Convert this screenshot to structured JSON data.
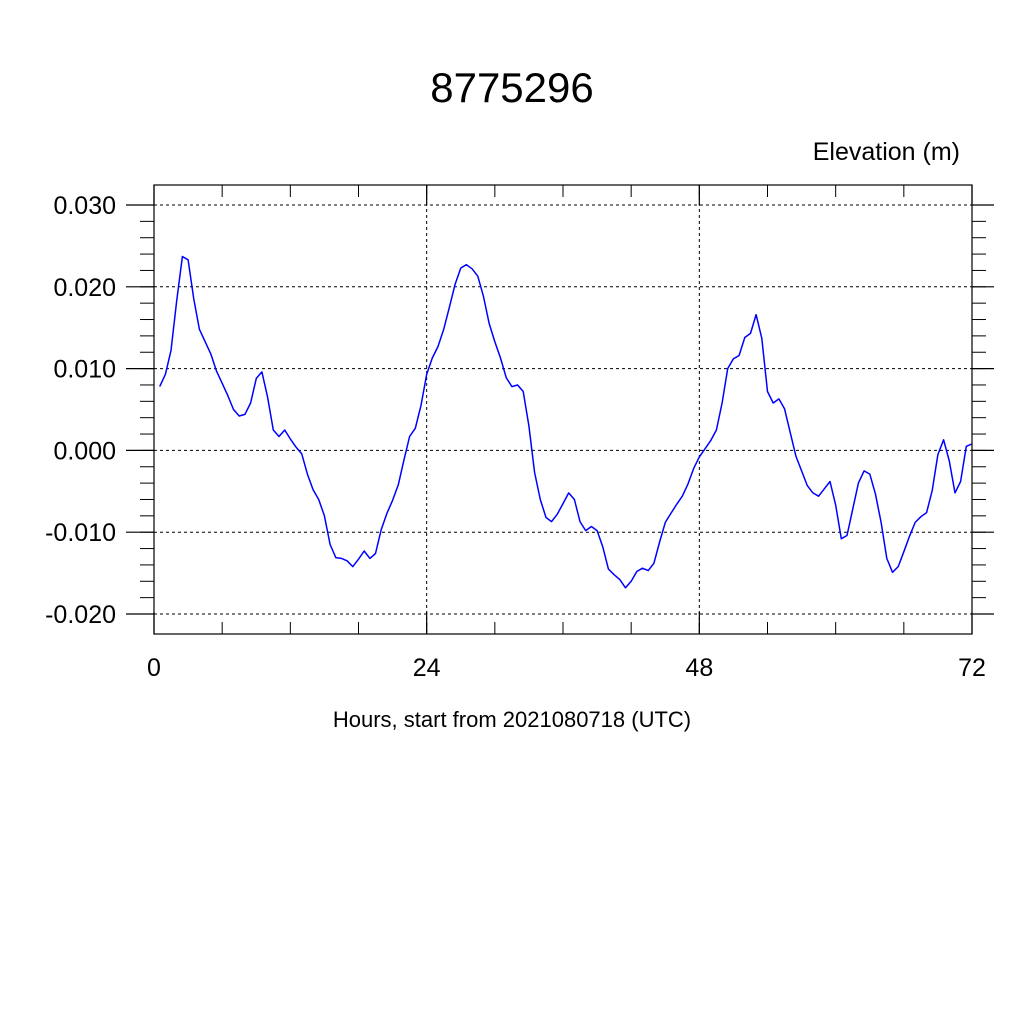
{
  "chart_data": {
    "type": "line",
    "title": "8775296",
    "ylabel": "Elevation (m)",
    "xlabel": "Hours, start from 2021080718 (UTC)",
    "xlim": [
      0,
      72
    ],
    "ylim": [
      -0.02,
      0.03
    ],
    "xticks": [
      0,
      24,
      48,
      72
    ],
    "xtick_labels": [
      "0",
      "24",
      "48",
      "72"
    ],
    "yticks": [
      -0.02,
      -0.01,
      0.0,
      0.01,
      0.02,
      0.03
    ],
    "ytick_labels": [
      "-0.020",
      "-0.010",
      "0.000",
      "0.010",
      "0.020",
      "0.030"
    ],
    "grid": true,
    "series": [
      {
        "color": "#0000ff",
        "x": [
          0.5,
          1.0,
          1.5,
          2.0,
          2.5,
          3.0,
          3.5,
          4.0,
          4.5,
          5.0,
          5.5,
          6.0,
          6.5,
          7.0,
          7.5,
          8.0,
          8.5,
          9.0,
          9.5,
          10.0,
          10.5,
          11.0,
          11.5,
          12.0,
          12.5,
          13.0,
          13.5,
          14.0,
          14.5,
          15.0,
          15.5,
          16.0,
          16.5,
          17.0,
          17.5,
          18.0,
          18.5,
          19.0,
          19.5,
          20.0,
          20.5,
          21.0,
          21.5,
          22.0,
          22.5,
          23.0,
          23.5,
          24.0,
          24.5,
          25.0,
          25.5,
          26.0,
          26.5,
          27.0,
          27.5,
          28.0,
          28.5,
          29.0,
          29.5,
          30.0,
          30.5,
          31.0,
          31.5,
          32.0,
          32.5,
          33.0,
          33.5,
          34.0,
          34.5,
          35.0,
          35.5,
          36.0,
          36.5,
          37.0,
          37.5,
          38.0,
          38.5,
          39.0,
          39.5,
          40.0,
          40.5,
          41.0,
          41.5,
          42.0,
          42.5,
          43.0,
          43.5,
          44.0,
          44.5,
          45.0,
          45.5,
          46.0,
          46.5,
          47.0,
          47.5,
          48.0,
          48.5,
          49.0,
          49.5,
          50.0,
          50.5,
          51.0,
          51.5,
          52.0,
          52.5,
          53.0,
          53.5,
          54.0,
          54.5,
          55.0,
          55.5,
          56.0,
          56.5,
          57.0,
          57.5,
          58.0,
          58.5,
          59.0,
          59.5,
          60.0,
          60.5,
          61.0,
          61.5,
          62.0,
          62.5,
          63.0,
          63.5,
          64.0,
          64.5,
          65.0,
          65.5,
          66.0,
          66.5,
          67.0,
          67.5,
          68.0,
          68.5,
          69.0,
          69.5,
          70.0,
          70.5,
          71.0,
          71.5,
          72.0
        ],
        "y": [
          0.0078,
          0.0093,
          0.0122,
          0.0183,
          0.0237,
          0.0233,
          0.0185,
          0.0148,
          0.0133,
          0.0118,
          0.0097,
          0.0082,
          0.0067,
          0.005,
          0.0042,
          0.0044,
          0.0058,
          0.0088,
          0.0096,
          0.0065,
          0.0025,
          0.0017,
          0.0025,
          0.0014,
          0.0004,
          -0.0004,
          -0.0029,
          -0.0048,
          -0.006,
          -0.008,
          -0.0115,
          -0.0131,
          -0.0132,
          -0.0135,
          -0.0142,
          -0.0133,
          -0.0123,
          -0.0132,
          -0.0126,
          -0.0097,
          -0.0077,
          -0.0061,
          -0.0042,
          -0.0012,
          0.0017,
          0.0027,
          0.0055,
          0.0093,
          0.0113,
          0.0127,
          0.0148,
          0.0175,
          0.0203,
          0.0223,
          0.0227,
          0.0222,
          0.0213,
          0.0188,
          0.0155,
          0.0133,
          0.0113,
          0.0089,
          0.0078,
          0.008,
          0.0072,
          0.003,
          -0.0027,
          -0.006,
          -0.0082,
          -0.0087,
          -0.0078,
          -0.0065,
          -0.0052,
          -0.006,
          -0.0087,
          -0.0098,
          -0.0093,
          -0.0098,
          -0.0118,
          -0.0145,
          -0.0152,
          -0.0158,
          -0.0168,
          -0.016,
          -0.0148,
          -0.0144,
          -0.0147,
          -0.0138,
          -0.0112,
          -0.0088,
          -0.0077,
          -0.0066,
          -0.0056,
          -0.0041,
          -0.0022,
          -0.0008,
          0.0002,
          0.0012,
          0.0025,
          0.0058,
          0.01,
          0.0112,
          0.0116,
          0.0138,
          0.0143,
          0.0166,
          0.0137,
          0.0072,
          0.0058,
          0.0063,
          0.0051,
          0.0022,
          -0.0007,
          -0.0025,
          -0.0043,
          -0.0052,
          -0.0056,
          -0.0047,
          -0.0038,
          -0.0067,
          -0.0108,
          -0.0104,
          -0.0072,
          -0.004,
          -0.0025,
          -0.0029,
          -0.0053,
          -0.0088,
          -0.0132,
          -0.0149,
          -0.0142,
          -0.0124,
          -0.0105,
          -0.0088,
          -0.0081,
          -0.0076,
          -0.0049,
          -0.0005,
          0.0013,
          -0.0013,
          -0.0052,
          -0.0038,
          0.0005,
          0.0008
        ]
      }
    ]
  }
}
